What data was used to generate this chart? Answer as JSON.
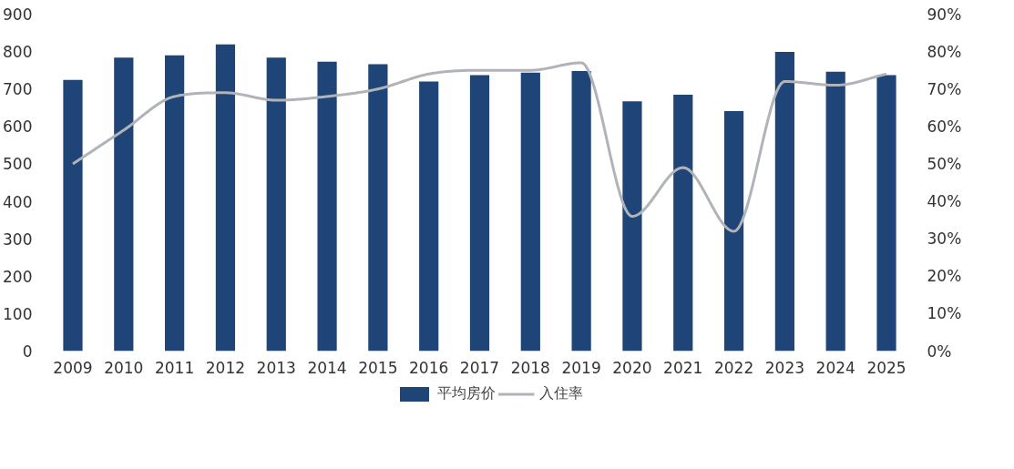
{
  "chart_data": {
    "type": "bar",
    "categories": [
      "2009",
      "2010",
      "2011",
      "2012",
      "2013",
      "2014",
      "2015",
      "2016",
      "2017",
      "2018",
      "2019",
      "2020",
      "2021",
      "2022",
      "2023",
      "2024",
      "2025"
    ],
    "series": [
      {
        "name": "平均房价",
        "color": "#1f4477",
        "values": [
          724,
          784,
          790,
          819,
          784,
          773,
          766,
          720,
          737,
          744,
          748,
          667,
          685,
          641,
          799,
          746,
          737
        ]
      },
      {
        "name": "入住率",
        "type": "line",
        "axis": "y2",
        "color": "#b0b3b8",
        "values": [
          50,
          59,
          68,
          69,
          67,
          68,
          70,
          74,
          75,
          75,
          77,
          36,
          49,
          32,
          72,
          71,
          74
        ]
      }
    ],
    "ylim": [
      0,
      900
    ],
    "yticks": [
      0,
      100,
      200,
      300,
      400,
      500,
      600,
      700,
      800,
      900
    ],
    "y2lim": [
      0,
      90
    ],
    "y2ticks": [
      {
        "value": 0,
        "label": "0%"
      },
      {
        "value": 10,
        "label": "10%"
      },
      {
        "value": 20,
        "label": "20%"
      },
      {
        "value": 30,
        "label": "30%"
      },
      {
        "value": 40,
        "label": "40%"
      },
      {
        "value": 50,
        "label": "50%"
      },
      {
        "value": 60,
        "label": "60%"
      },
      {
        "value": 70,
        "label": "70%"
      },
      {
        "value": 80,
        "label": "80%"
      },
      {
        "value": 90,
        "label": "90%"
      }
    ],
    "grid": false,
    "legend": "bottom"
  }
}
